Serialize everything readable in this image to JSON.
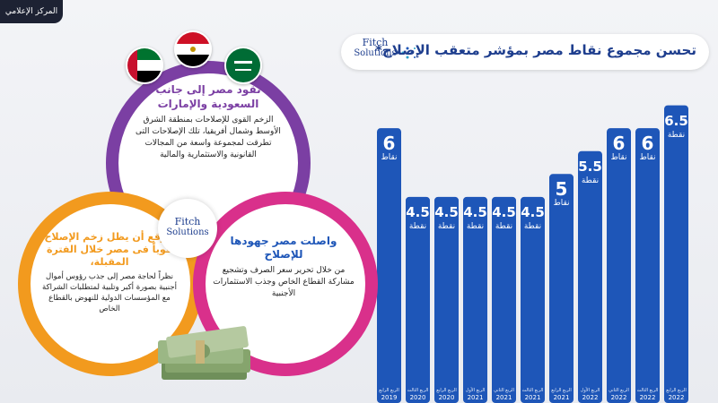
{
  "header": {
    "corner_tag": "المركز الإعلامي",
    "title": "تحسن مجموع نقاط مصر بمؤشر متعقب الإصلاح*"
  },
  "logo": {
    "line1": "Fitch",
    "line2": "Solutions"
  },
  "colors": {
    "bar": "#1e56b8",
    "title": "#1e3e8e",
    "purple": "#7b3fa3",
    "orange": "#f29a1e",
    "pink": "#d9308b",
    "blue_head": "#1e56b8"
  },
  "icons": [
    "egypt-flag-icon",
    "saudi-flag-icon",
    "uae-flag-icon",
    "money-stack-icon"
  ],
  "circles": {
    "top": {
      "heading": "تقود مصر إلى جانب السعودية والإمارات",
      "body": "الزخم القوى للإصلاحات بمنطقة الشرق الأوسط وشمال أفريقيا، تلك الإصلاحات التى تطرقت لمجموعة واسعة من المجالات القانونية والاستثمارية والمالية"
    },
    "left": {
      "heading": "نتوقع أن يظل زخم الإصلاح قوياً فى مصر خلال الفترة المقبلة،",
      "body": "نظراً لحاجة مصر إلى جذب رؤوس أموال أجنبية بصورة أكبر وتلبية لمتطلبات الشراكة مع المؤسسات الدولية للنهوض بالقطاع الخاص"
    },
    "right": {
      "heading": "واصلت مصر جهودها للإصلاح",
      "body": "من خلال تحرير سعر الصرف وتشجيع مشاركة القطاع الخاص وجذب الاستثمارات الأجنبية"
    }
  },
  "chart_data": {
    "type": "bar",
    "title": "تحسن مجموع نقاط مصر بمؤشر متعقب الإصلاح*",
    "categories": [
      "الربع الرابع 2019",
      "الربع الثالث 2020",
      "الربع الرابع 2020",
      "الربع الأول 2021",
      "الربع الثاني 2021",
      "الربع الثالث 2021",
      "الربع الرابع 2021",
      "الربع الأول 2022",
      "الربع الثاني 2022",
      "الربع الثالث 2022",
      "الربع الرابع 2022"
    ],
    "years": [
      "2019",
      "2020",
      "2020",
      "2021",
      "2021",
      "2021",
      "2021",
      "2022",
      "2022",
      "2022",
      "2022"
    ],
    "quarters": [
      "الربع الرابع",
      "الربع الثالث",
      "الربع الرابع",
      "الربع الأول",
      "الربع الثاني",
      "الربع الثالث",
      "الربع الرابع",
      "الربع الأول",
      "الربع الثاني",
      "الربع الثالث",
      "الربع الرابع"
    ],
    "values": [
      6,
      4.5,
      4.5,
      4.5,
      4.5,
      4.5,
      5,
      5.5,
      6,
      6,
      6.5
    ],
    "value_labels": [
      "6",
      "4.5",
      "4.5",
      "4.5",
      "4.5",
      "4.5",
      "5",
      "5.5",
      "6",
      "6",
      "6.5"
    ],
    "units": [
      "نقاط",
      "نقطة",
      "نقطة",
      "نقطة",
      "نقطة",
      "نقطة",
      "نقاط",
      "نقطة",
      "نقاط",
      "نقاط",
      "نقطة"
    ],
    "ylim": [
      0,
      7
    ],
    "grid": false,
    "legend": "none"
  }
}
